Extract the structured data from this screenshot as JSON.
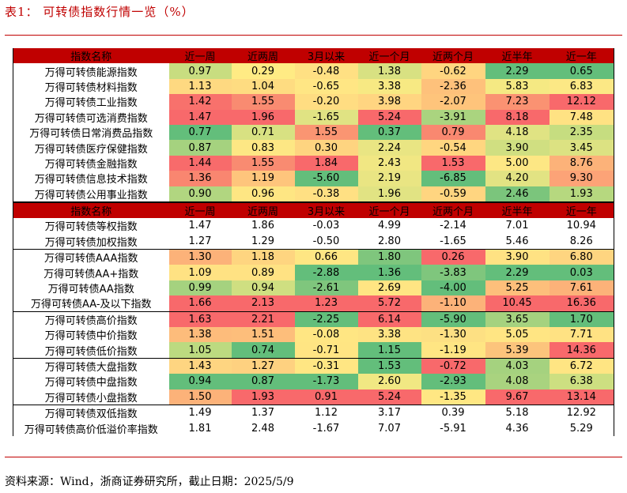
{
  "title": "表1：  可转债指数行情一览（%）",
  "source": "资料来源：Wind，浙商证券研究所，截止日期：2025/5/9",
  "headers": [
    "指数名称",
    "近一周",
    "近两周",
    "3月以来",
    "近一个月",
    "近两个月",
    "近半年",
    "近一年"
  ],
  "colors": {
    "header": "#c00000",
    "green": "#63be7b",
    "light_green": "#c2dc7f",
    "yellow": "#ffeb84",
    "orange": "#fcb279",
    "red": "#f8696b"
  },
  "section1": [
    {
      "name": "万得可转债能源指数",
      "values": [
        "0.97",
        "0.29",
        "-0.48",
        "1.38",
        "-0.62",
        "2.29",
        "0.65"
      ],
      "colors": [
        "#c8dd80",
        "#ffeb84",
        "#ffe083",
        "#d8e182",
        "#ffd580",
        "#63be7b",
        "#63be7b"
      ]
    },
    {
      "name": "万得可转债材料指数",
      "values": [
        "1.13",
        "1.04",
        "-0.65",
        "3.38",
        "-2.36",
        "5.83",
        "6.83"
      ],
      "colors": [
        "#fed981",
        "#fedc81",
        "#ffe684",
        "#f7e983",
        "#fec17b",
        "#f5e983",
        "#fce885"
      ]
    },
    {
      "name": "万得可转债工业指数",
      "values": [
        "1.42",
        "1.55",
        "-0.20",
        "3.98",
        "-2.07",
        "7.23",
        "12.12"
      ],
      "colors": [
        "#f8716c",
        "#f98b71",
        "#ffdd82",
        "#ffd581",
        "#fec47b",
        "#fa9272",
        "#f8696b"
      ]
    },
    {
      "name": "万得可转债可选消费指数",
      "values": [
        "1.47",
        "1.96",
        "-1.65",
        "5.24",
        "-3.91",
        "8.18",
        "7.48"
      ],
      "colors": [
        "#f8696b",
        "#f8696b",
        "#e0e383",
        "#f8696b",
        "#aad47f",
        "#f8696b",
        "#ffe283"
      ]
    },
    {
      "name": "万得可转债日常消费品指数",
      "values": [
        "0.77",
        "0.71",
        "1.55",
        "0.37",
        "0.79",
        "4.18",
        "2.35"
      ],
      "colors": [
        "#63be7b",
        "#d8e182",
        "#fa9572",
        "#63be7b",
        "#f98870",
        "#e0e383",
        "#c6dd80"
      ]
    },
    {
      "name": "万得可转债医疗保健指数",
      "values": [
        "0.87",
        "0.83",
        "0.30",
        "2.24",
        "-0.54",
        "3.90",
        "3.45"
      ],
      "colors": [
        "#a5d27f",
        "#fde784",
        "#fed480",
        "#e9e583",
        "#ffd680",
        "#d0df81",
        "#dce282"
      ]
    },
    {
      "name": "万得可转债金融指数",
      "values": [
        "1.44",
        "1.55",
        "1.84",
        "2.43",
        "1.53",
        "5.00",
        "8.76"
      ],
      "colors": [
        "#f86b6b",
        "#f98b71",
        "#f8696b",
        "#f1e783",
        "#f8696b",
        "#fde784",
        "#fcb279"
      ]
    },
    {
      "name": "万得可转债信息技术指数",
      "values": [
        "1.36",
        "1.19",
        "-5.60",
        "2.19",
        "-6.85",
        "4.20",
        "9.30"
      ],
      "colors": [
        "#f98670",
        "#fec57c",
        "#63be7b",
        "#e9e583",
        "#63be7b",
        "#e2e383",
        "#fca377"
      ]
    },
    {
      "name": "万得可转债公用事业指数",
      "values": [
        "0.90",
        "0.96",
        "-0.38",
        "1.96",
        "-0.59",
        "2.46",
        "1.93"
      ],
      "colors": [
        "#b1d680",
        "#fee683",
        "#ffe083",
        "#e1e383",
        "#ffd580",
        "#7bc57c",
        "#b6d87f"
      ]
    }
  ],
  "section2": [
    {
      "name": "万得可转债等权指数",
      "values": [
        "1.47",
        "1.86",
        "-0.03",
        "4.99",
        "-2.14",
        "7.01",
        "10.94"
      ],
      "colors": []
    },
    {
      "name": "万得可转债加权指数",
      "values": [
        "1.27",
        "1.29",
        "-0.50",
        "2.80",
        "-1.65",
        "5.46",
        "8.26"
      ],
      "colors": []
    }
  ],
  "section3": [
    {
      "name": "万得可转债AAA指数",
      "values": [
        "1.30",
        "1.18",
        "0.66",
        "1.80",
        "0.26",
        "3.90",
        "6.80"
      ],
      "colors": [
        "#fcb279",
        "#fed580",
        "#fee683",
        "#7fc67d",
        "#f8696b",
        "#ffe283",
        "#fed580"
      ]
    },
    {
      "name": "万得可转债AA+指数",
      "values": [
        "1.09",
        "0.89",
        "-2.88",
        "1.36",
        "-3.83",
        "2.29",
        "0.03"
      ],
      "colors": [
        "#ffe283",
        "#ffe283",
        "#63be7b",
        "#63be7b",
        "#7fc67d",
        "#63be7b",
        "#63be7b"
      ]
    },
    {
      "name": "万得可转债AA指数",
      "values": [
        "0.99",
        "0.94",
        "-2.61",
        "2.69",
        "-4.00",
        "5.25",
        "7.61"
      ],
      "colors": [
        "#a5d27f",
        "#cfdf81",
        "#7fc67d",
        "#ffe583",
        "#63be7b",
        "#fdbf7b",
        "#fcb279"
      ]
    },
    {
      "name": "万得可转债AA-及以下指数",
      "values": [
        "1.66",
        "2.13",
        "1.23",
        "5.72",
        "-1.10",
        "10.45",
        "16.36"
      ],
      "colors": [
        "#f8696b",
        "#f8696b",
        "#f8696b",
        "#f8696b",
        "#fcb279",
        "#f8696b",
        "#f8696b"
      ]
    }
  ],
  "section4": [
    {
      "name": "万得可转债高价指数",
      "values": [
        "1.63",
        "2.21",
        "-2.25",
        "6.14",
        "-5.90",
        "3.65",
        "1.70"
      ],
      "colors": [
        "#f8696b",
        "#f8696b",
        "#63be7b",
        "#f8696b",
        "#63be7b",
        "#a5d27f",
        "#63be7b"
      ]
    },
    {
      "name": "万得可转债中价指数",
      "values": [
        "1.38",
        "1.51",
        "-0.08",
        "3.38",
        "-1.30",
        "5.05",
        "7.71"
      ],
      "colors": [
        "#fdbc7b",
        "#fdbe7b",
        "#ffe683",
        "#fee383",
        "#fde083",
        "#ffe583",
        "#ffe283"
      ]
    },
    {
      "name": "万得可转债低价指数",
      "values": [
        "1.05",
        "0.74",
        "-0.71",
        "1.15",
        "-1.19",
        "5.39",
        "14.36"
      ],
      "colors": [
        "#bcda80",
        "#63be7b",
        "#ffe583",
        "#63be7b",
        "#ffe583",
        "#fcc47c",
        "#f8696b"
      ]
    }
  ],
  "section5": [
    {
      "name": "万得可转债大盘指数",
      "values": [
        "1.43",
        "1.27",
        "-0.31",
        "1.53",
        "-0.72",
        "4.03",
        "6.72"
      ],
      "colors": [
        "#fed581",
        "#fed180",
        "#ffe683",
        "#63be7b",
        "#f8696b",
        "#a5d27f",
        "#ffe583"
      ]
    },
    {
      "name": "万得可转债中盘指数",
      "values": [
        "0.94",
        "0.87",
        "-1.73",
        "2.60",
        "-2.93",
        "4.08",
        "6.38"
      ],
      "colors": [
        "#63be7b",
        "#63be7b",
        "#63be7b",
        "#f1e883",
        "#63be7b",
        "#a9d37f",
        "#cddf81"
      ]
    },
    {
      "name": "万得可转债小盘指数",
      "values": [
        "1.50",
        "1.93",
        "0.91",
        "5.24",
        "-1.35",
        "9.67",
        "13.14"
      ],
      "colors": [
        "#fcb279",
        "#f8696b",
        "#f8696b",
        "#f8696b",
        "#ffe783",
        "#f8696b",
        "#f8696b"
      ]
    }
  ],
  "section6": [
    {
      "name": "万得可转债双低指数",
      "values": [
        "1.49",
        "1.37",
        "1.12",
        "3.17",
        "0.39",
        "5.18",
        "12.92"
      ],
      "colors": []
    },
    {
      "name": "万得可转债高价低溢价率指数",
      "values": [
        "1.81",
        "2.48",
        "-1.67",
        "7.07",
        "-5.91",
        "4.36",
        "5.29"
      ],
      "colors": []
    }
  ]
}
